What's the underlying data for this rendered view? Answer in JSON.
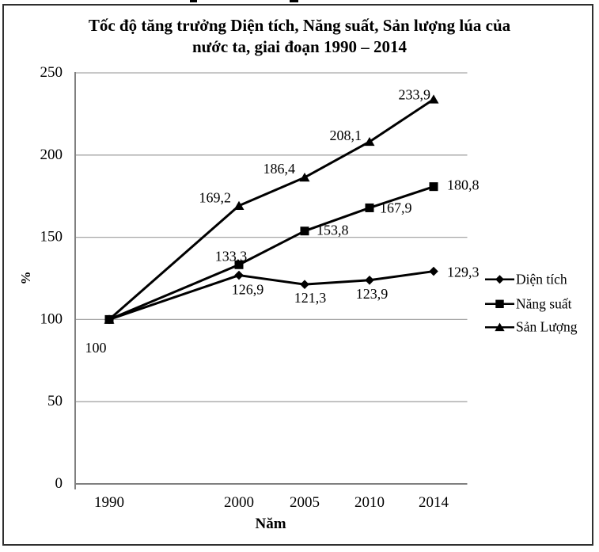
{
  "title": {
    "line1": "Tốc độ tăng trưởng Diện tích, Năng suất, Sản lượng lúa của",
    "line2": "nước ta, giai đoạn 1990 – 2014"
  },
  "axes": {
    "y_label": "%",
    "x_label": "Năm",
    "y_tick_labels": [
      "0",
      "50",
      "100",
      "150",
      "200",
      "250"
    ]
  },
  "chart_data": {
    "type": "line",
    "title": "Tốc độ tăng trưởng Diện tích, Năng suất, Sản lượng lúa của nước ta, giai đoạn 1990 – 2014",
    "xlabel": "Năm",
    "ylabel": "%",
    "ylim": [
      0,
      250
    ],
    "y_tick_step": 50,
    "grid": true,
    "legend_position": "right",
    "categories": [
      "1990",
      "2000",
      "2005",
      "2010",
      "2014"
    ],
    "series": [
      {
        "name": "Diện tích",
        "marker": "diamond",
        "values": [
          100,
          126.9,
          121.3,
          123.9,
          129.3
        ],
        "point_labels": [
          "",
          "126,9",
          "121,3",
          "123,9",
          "129,3"
        ]
      },
      {
        "name": "Năng suất",
        "marker": "square",
        "values": [
          100,
          133.3,
          153.8,
          167.9,
          180.8
        ],
        "point_labels": [
          "",
          "133,3",
          "153,8",
          "167,9",
          "180,8"
        ]
      },
      {
        "name": "Sản Lượng",
        "marker": "triangle",
        "values": [
          100,
          169.2,
          186.4,
          208.1,
          233.9
        ],
        "point_labels": [
          "",
          "169,2",
          "186,4",
          "208,1",
          "233,9"
        ]
      }
    ],
    "origin_label": "100"
  },
  "colors": {
    "series": "#000000",
    "grid": "#a6a6a6",
    "axis": "#808080",
    "text": "#000000",
    "background": "#ffffff",
    "border": "#2f2f2f"
  }
}
